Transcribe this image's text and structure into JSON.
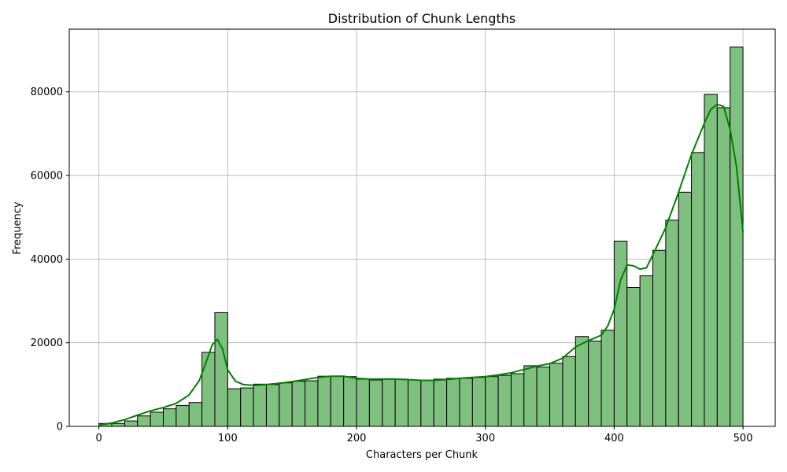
{
  "chart_data": {
    "type": "bar",
    "title": "Distribution of Chunk Lengths",
    "xlabel": "Characters per Chunk",
    "ylabel": "Frequency",
    "xlim": [
      -23,
      525
    ],
    "ylim": [
      0,
      95000
    ],
    "xticks": [
      0,
      100,
      200,
      300,
      400,
      500
    ],
    "yticks": [
      0,
      20000,
      40000,
      60000,
      80000
    ],
    "grid": true,
    "bin_start": 0,
    "bin_width": 10,
    "bar_color": "#7fbf7f",
    "bar_edge_color": "#000000",
    "kde_color": "#008000",
    "values": [
      700,
      700,
      1300,
      2500,
      3400,
      4200,
      5000,
      5700,
      17700,
      27200,
      9000,
      9200,
      10100,
      10000,
      10400,
      10800,
      10900,
      12000,
      12000,
      11900,
      11300,
      11100,
      11400,
      11300,
      11100,
      11000,
      11300,
      11500,
      11500,
      11700,
      11900,
      12200,
      12600,
      14500,
      14200,
      15100,
      16700,
      21500,
      20400,
      23000,
      44300,
      33200,
      36000,
      42100,
      49300,
      56000,
      65500,
      79400,
      76200,
      90700
    ],
    "kde": {
      "x": [
        0,
        10,
        20,
        30,
        40,
        50,
        60,
        70,
        78,
        84,
        88,
        92,
        96,
        100,
        106,
        112,
        120,
        130,
        140,
        150,
        160,
        170,
        180,
        190,
        200,
        210,
        220,
        230,
        240,
        250,
        260,
        270,
        280,
        290,
        300,
        310,
        320,
        330,
        340,
        350,
        360,
        370,
        380,
        390,
        395,
        400,
        405,
        410,
        415,
        420,
        425,
        430,
        440,
        450,
        460,
        470,
        475,
        480,
        485,
        490,
        495,
        500
      ],
      "y": [
        300,
        800,
        1600,
        2700,
        3700,
        4500,
        5500,
        7500,
        11000,
        16000,
        19500,
        20800,
        18500,
        13500,
        10800,
        10000,
        9800,
        10000,
        10300,
        10700,
        11200,
        11700,
        12000,
        12000,
        11500,
        11300,
        11300,
        11300,
        11200,
        11000,
        11000,
        11200,
        11500,
        11700,
        11900,
        12300,
        12800,
        13600,
        14400,
        15000,
        16300,
        19000,
        20500,
        21800,
        24000,
        28000,
        35000,
        38600,
        38400,
        37600,
        37900,
        41000,
        47500,
        56000,
        65000,
        72500,
        75800,
        77000,
        76500,
        71000,
        62000,
        46500
      ]
    }
  }
}
